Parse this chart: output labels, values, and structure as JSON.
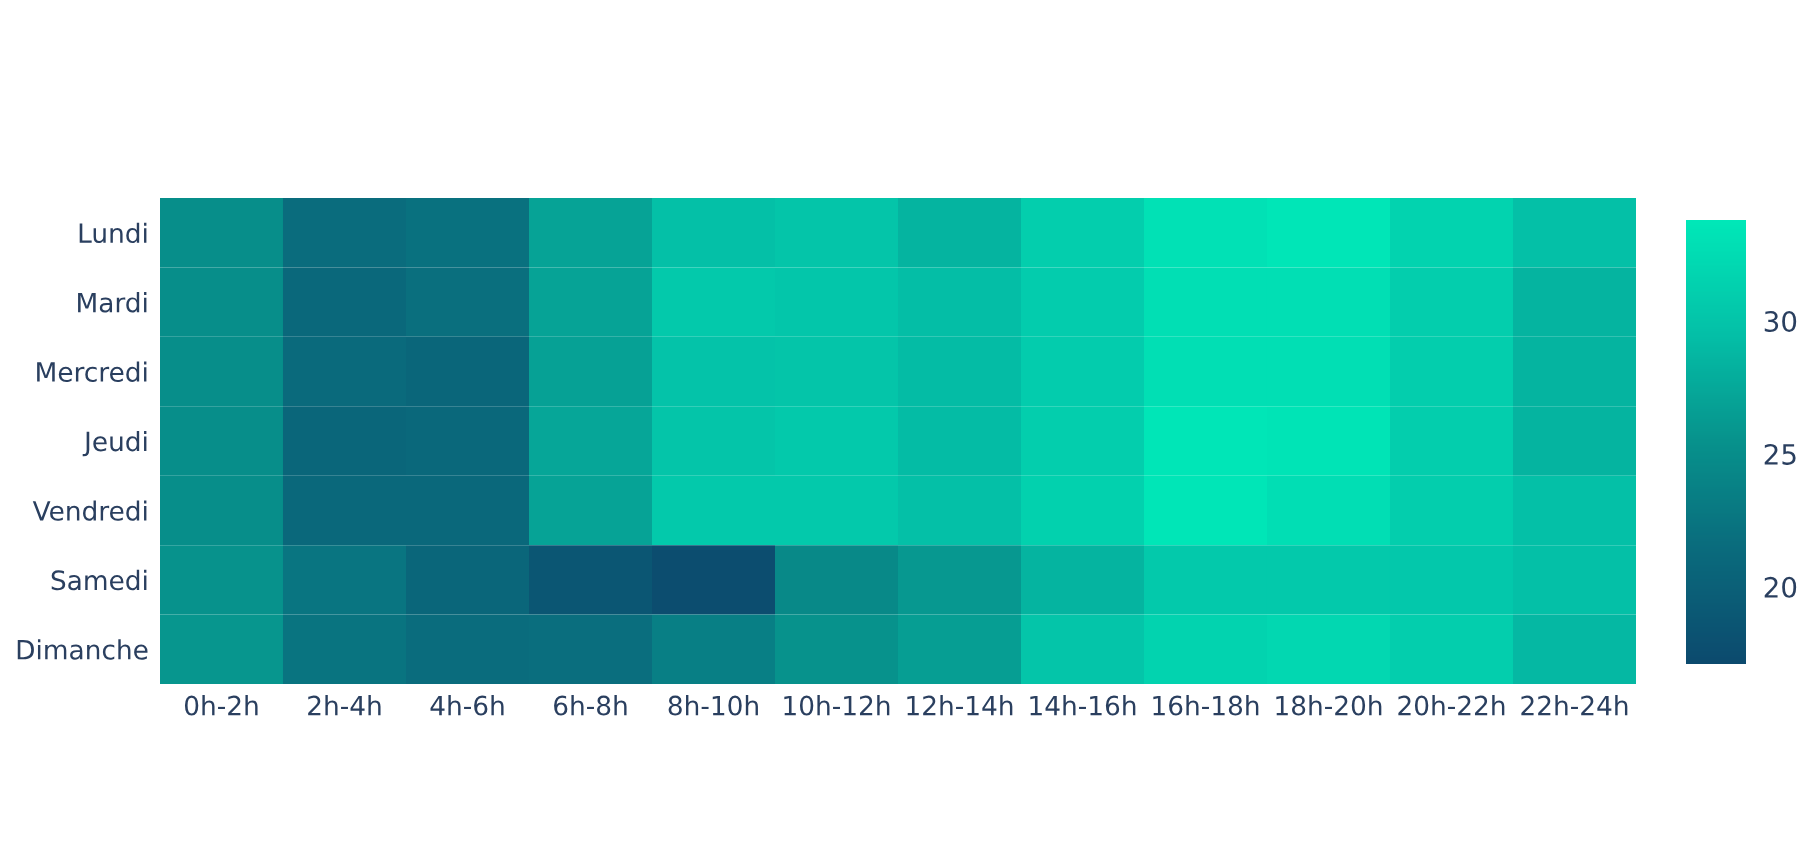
{
  "chart_data": {
    "type": "heatmap",
    "categories": [
      "0h-2h",
      "2h-4h",
      "4h-6h",
      "6h-8h",
      "8h-10h",
      "10h-12h",
      "12h-14h",
      "14h-16h",
      "16h-18h",
      "18h-20h",
      "20h-22h",
      "22h-24h"
    ],
    "y_categories": [
      "Lundi",
      "Mardi",
      "Mercredi",
      "Jeudi",
      "Vendredi",
      "Samedi",
      "Dimanche"
    ],
    "cells": [
      [
        25,
        21.5,
        22,
        27,
        29.5,
        30,
        28.5,
        31,
        33,
        33.5,
        31.5,
        29.5
      ],
      [
        25,
        21,
        21.8,
        27,
        30.5,
        30.2,
        29.3,
        30.8,
        32.8,
        32.8,
        31,
        28.5
      ],
      [
        25,
        21.3,
        20.8,
        26.8,
        29.8,
        30,
        29.2,
        30.8,
        32.8,
        32.8,
        31,
        28.5
      ],
      [
        25,
        20.8,
        21,
        27.2,
        30,
        30.5,
        29.2,
        31,
        33.5,
        33.3,
        31,
        28.5
      ],
      [
        25,
        21,
        21,
        27,
        30.5,
        30.5,
        29.5,
        31.3,
        33.5,
        32.7,
        31,
        29.5
      ],
      [
        25.5,
        22.5,
        20.8,
        18.7,
        17.5,
        24.5,
        26,
        28.5,
        30.5,
        30.5,
        30.3,
        29.5
      ],
      [
        25.8,
        22.3,
        21.5,
        21.7,
        23.5,
        25.5,
        26.5,
        30,
        31.5,
        32,
        31,
        28.8
      ]
    ],
    "clim": [
      17.1,
      33.8
    ],
    "cticks": [
      20,
      25,
      30
    ]
  }
}
